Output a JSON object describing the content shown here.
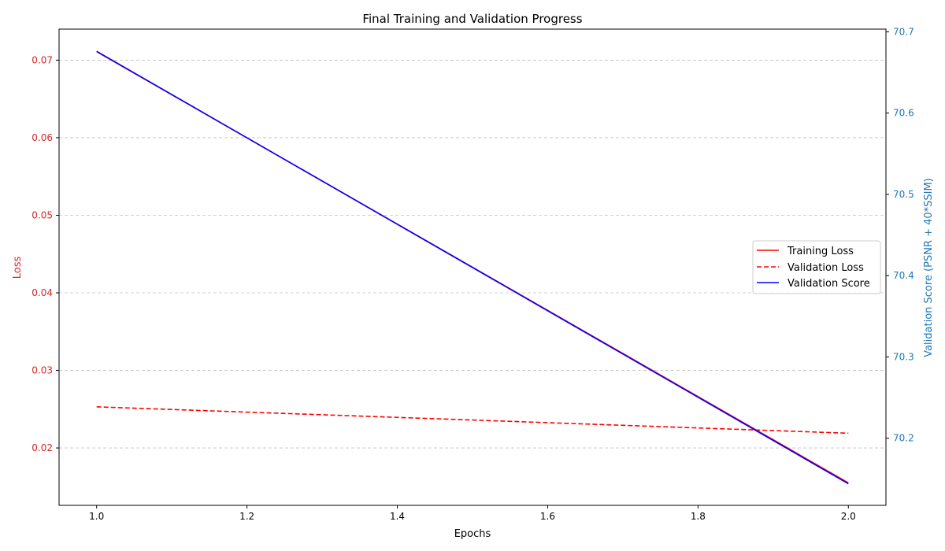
{
  "chart_data": {
    "type": "line",
    "title": "Final Training and Validation Progress",
    "xlabel": "Epochs",
    "ylabel_left": "Loss",
    "ylabel_right": "Validation Score (PSNR + 40*SSIM)",
    "xlim": [
      0.95,
      2.05
    ],
    "ylim_left": [
      0.0126,
      0.074
    ],
    "ylim_right": [
      70.1174,
      70.7033
    ],
    "x_ticks": [
      1.0,
      1.2,
      1.4,
      1.6,
      1.8,
      2.0
    ],
    "y_left_ticks": [
      0.02,
      0.03,
      0.04,
      0.05,
      0.06,
      0.07
    ],
    "y_right_ticks": [
      70.2,
      70.3,
      70.4,
      70.5,
      70.6,
      70.7
    ],
    "grid": "horizontal dashed",
    "legend_position": "center-right",
    "colors": {
      "left_axis": "#d62728",
      "right_axis": "#1f77b4",
      "training_loss": "#ff0000",
      "validation_loss": "#ff0000",
      "validation_score": "#0000ff"
    },
    "series": [
      {
        "name": "Training Loss",
        "axis": "left",
        "style": "solid",
        "x": [
          1.0,
          2.0
        ],
        "values": [
          0.0711,
          0.0155
        ]
      },
      {
        "name": "Validation Loss",
        "axis": "left",
        "style": "dashed",
        "x": [
          1.0,
          2.0
        ],
        "values": [
          0.0253,
          0.0219
        ]
      },
      {
        "name": "Validation Score",
        "axis": "right",
        "style": "solid",
        "x": [
          1.0,
          2.0
        ],
        "values": [
          70.676,
          70.144
        ]
      }
    ]
  }
}
